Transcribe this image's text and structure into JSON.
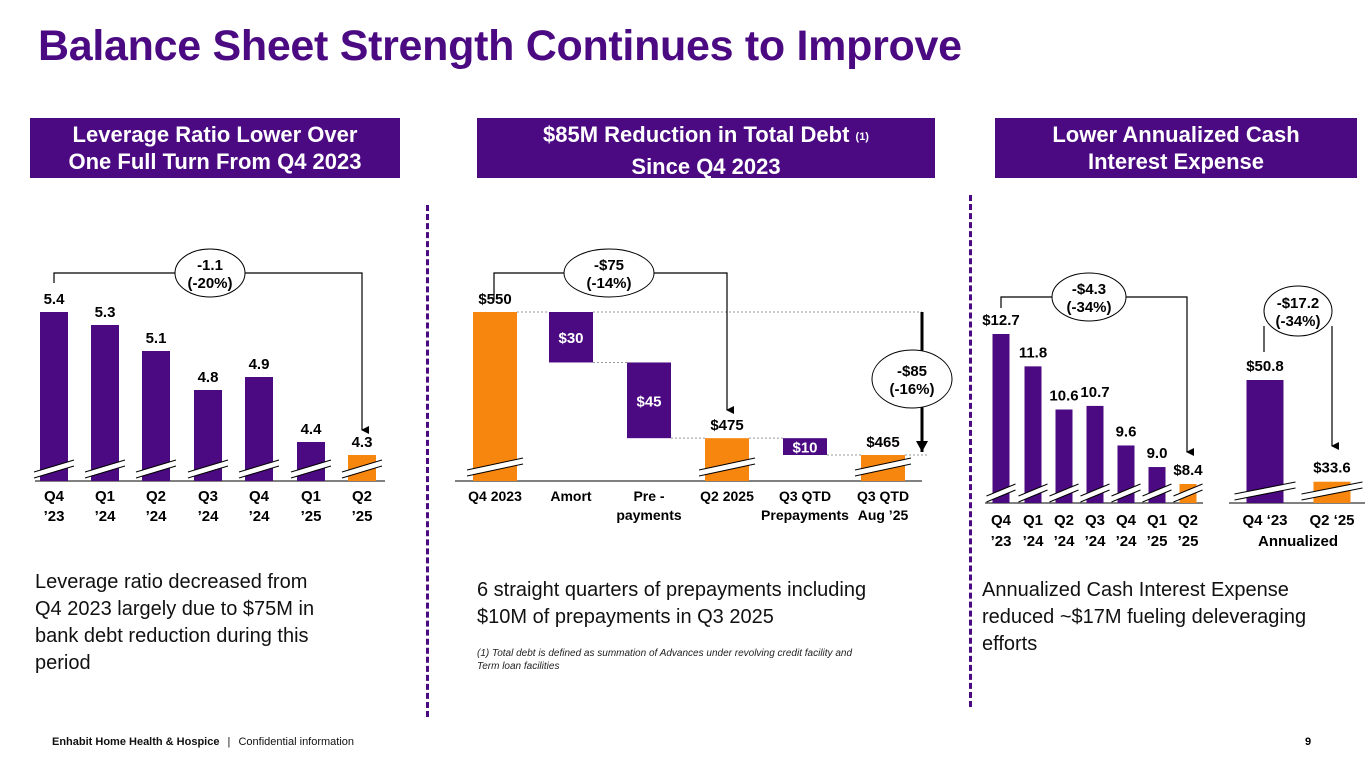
{
  "slide": {
    "title": "Balance Sheet Strength Continues to Improve",
    "page_number": "9",
    "footer_company": "Enhabit Home Health & Hospice",
    "footer_separator": "|",
    "footer_confidential": "Confidential information"
  },
  "colors": {
    "purple": "#4b0a82",
    "orange": "#f7860f",
    "text": "#111111"
  },
  "panels": [
    {
      "header_line1": "Leverage Ratio Lower Over",
      "header_line2": "One Full Turn From Q4 2023",
      "body": [
        "Leverage ratio decreased from",
        "Q4 2023 largely due to $75M in",
        "bank debt reduction during this",
        "period"
      ]
    },
    {
      "header_line1": "$85M Reduction in Total Debt",
      "header_sup": "(1)",
      "header_line2": "Since Q4 2023",
      "body": [
        "6 straight quarters of prepayments including",
        "$10M of prepayments in Q3 2025"
      ],
      "footnote": [
        "(1) Total debt is defined as summation of Advances under revolving credit facility and",
        "Term loan facilities"
      ]
    },
    {
      "header_line1": "Lower Annualized Cash",
      "header_line2": "Interest Expense",
      "body": [
        "Annualized Cash Interest Expense",
        "reduced ~$17M fueling deleveraging",
        "efforts"
      ]
    }
  ],
  "chart_data": [
    {
      "id": "leverage",
      "type": "bar",
      "title": "Leverage Ratio",
      "categories": [
        [
          "Q4",
          "’23"
        ],
        [
          "Q1",
          "’24"
        ],
        [
          "Q2",
          "’24"
        ],
        [
          "Q3",
          "’24"
        ],
        [
          "Q4",
          "’24"
        ],
        [
          "Q1",
          "’25"
        ],
        [
          "Q2",
          "’25"
        ]
      ],
      "values": [
        5.4,
        5.3,
        5.1,
        4.8,
        4.9,
        4.4,
        4.3
      ],
      "labels": [
        "5.4",
        "5.3",
        "5.1",
        "4.8",
        "4.9",
        "4.4",
        "4.3"
      ],
      "highlight_index": 6,
      "axis_break": true,
      "callout": {
        "line1": "-1.1",
        "line2": "(-20%)",
        "from_index": 0,
        "to_index": 6
      }
    },
    {
      "id": "total_debt",
      "type": "bar",
      "subtype": "waterfall",
      "title": "Total Debt ($M)",
      "categories": [
        [
          "Q4 2023"
        ],
        [
          "Amort"
        ],
        [
          "Pre -",
          "payments"
        ],
        [
          "Q2 2025"
        ],
        [
          "Q3 QTD",
          "Prepayments"
        ],
        [
          "Q3 QTD",
          "Aug ’25"
        ]
      ],
      "steps": [
        {
          "kind": "total",
          "value": 550,
          "label": "$550"
        },
        {
          "kind": "decrease",
          "value": 30,
          "label": "$30"
        },
        {
          "kind": "decrease",
          "value": 45,
          "label": "$45"
        },
        {
          "kind": "total",
          "value": 475,
          "label": "$475"
        },
        {
          "kind": "decrease",
          "value": 10,
          "label": "$10"
        },
        {
          "kind": "total",
          "value": 465,
          "label": "$465"
        }
      ],
      "axis_break": true,
      "callouts": [
        {
          "line1": "-$75",
          "line2": "(-14%)",
          "from_index": 0,
          "to_index": 3
        },
        {
          "line1": "-$85",
          "line2": "(-16%)",
          "from_value": 550,
          "to_value": 465
        }
      ]
    },
    {
      "id": "quarterly_cash_interest",
      "type": "bar",
      "title": "Cash Interest Expense ($M)",
      "categories": [
        [
          "Q4",
          "’23"
        ],
        [
          "Q1",
          "’24"
        ],
        [
          "Q2",
          "’24"
        ],
        [
          "Q3",
          "’24"
        ],
        [
          "Q4",
          "’24"
        ],
        [
          "Q1",
          "’25"
        ],
        [
          "Q2",
          "’25"
        ]
      ],
      "values": [
        12.7,
        11.8,
        10.6,
        10.7,
        9.6,
        9.0,
        8.4
      ],
      "labels": [
        "$12.7",
        "11.8",
        "10.6",
        "10.7",
        "9.6",
        "9.0",
        "$8.4"
      ],
      "highlight_index": 6,
      "axis_break": true,
      "callout": {
        "line1": "-$4.3",
        "line2": "(-34%)",
        "from_index": 0,
        "to_index": 6
      }
    },
    {
      "id": "annualized_cash_interest",
      "type": "bar",
      "title": "Annualized Cash Interest Expense ($M)",
      "categories": [
        [
          "Q4 ‘23"
        ],
        [
          "Q2 ‘25"
        ]
      ],
      "sublabel": "Annualized",
      "values": [
        50.8,
        33.6
      ],
      "labels": [
        "$50.8",
        "$33.6"
      ],
      "highlight_index": 1,
      "axis_break": true,
      "callout": {
        "line1": "-$17.2",
        "line2": "(-34%)",
        "from_index": 0,
        "to_index": 1
      }
    }
  ]
}
